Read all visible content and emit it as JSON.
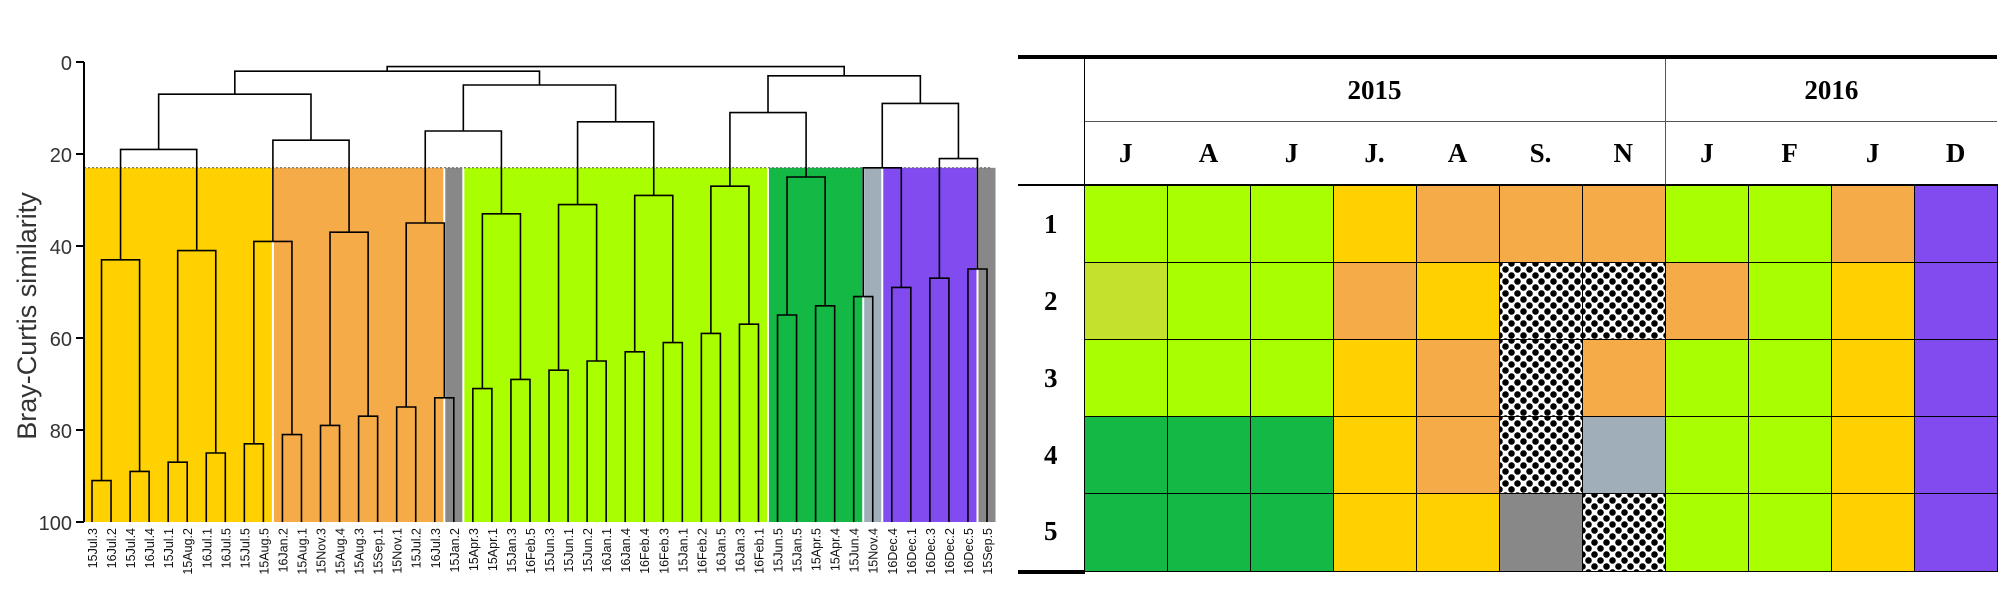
{
  "dendrogram": {
    "ylabel": "Bray-Curtis similarity",
    "yticks": [
      0,
      20,
      40,
      60,
      80,
      100
    ],
    "ylim": [
      0,
      100
    ],
    "cut_level": 23,
    "leaves": [
      "15Jul.3",
      "16Jul.2",
      "15Jul.4",
      "16Jul.4",
      "15Jul.1",
      "15Aug.2",
      "16Jul.1",
      "16Jul.5",
      "15Jul.5",
      "15Aug.5",
      "16Jan.2",
      "15Aug.1",
      "15Nov.3",
      "15Aug.4",
      "15Aug.3",
      "15Sep.1",
      "15Nov.1",
      "15Jul.2",
      "16Jul.3",
      "15Jan.2",
      "15Apr.3",
      "15Apr.1",
      "15Jan.3",
      "16Feb.5",
      "15Jun.3",
      "15Jun.1",
      "15Jun.2",
      "16Jan.1",
      "16Jan.4",
      "16Feb.4",
      "16Feb.3",
      "15Jan.1",
      "16Feb.2",
      "16Jan.5",
      "16Jan.3",
      "16Feb.1",
      "15Jun.5",
      "15Jan.5",
      "15Apr.5",
      "15Apr.4",
      "15Jun.4",
      "15Nov.4",
      "16Dec.4",
      "16Dec.1",
      "16Dec.3",
      "16Dec.2",
      "16Dec.5",
      "15Sep.5"
    ],
    "clusters": [
      {
        "color": "#FFD100",
        "from": 0,
        "to": 9
      },
      {
        "color": "#F5AB48",
        "from": 10,
        "to": 18
      },
      {
        "color": "#888888",
        "from": 19,
        "to": 19
      },
      {
        "color": "#A9FF00",
        "from": 20,
        "to": 35
      },
      {
        "color": "#13B845",
        "from": 36,
        "to": 40
      },
      {
        "color": "#9FAEB9",
        "from": 41,
        "to": 41
      },
      {
        "color": "#814BEF",
        "from": 42,
        "to": 46
      },
      {
        "color": "#888888",
        "from": 47,
        "to": 47
      }
    ],
    "merges": [
      [
        0,
        1,
        91
      ],
      [
        2,
        3,
        89
      ],
      [
        4,
        5,
        87
      ],
      [
        6,
        7,
        85
      ],
      [
        8,
        9,
        83
      ],
      [
        10,
        11,
        81
      ],
      [
        12,
        13,
        79
      ],
      [
        14,
        15,
        77
      ],
      [
        16,
        17,
        75
      ],
      [
        18,
        19,
        73
      ],
      [
        20,
        21,
        71
      ],
      [
        22,
        23,
        69
      ],
      [
        24,
        25,
        67
      ],
      [
        26,
        27,
        65
      ],
      [
        28,
        29,
        63
      ],
      [
        30,
        31,
        61
      ],
      [
        32,
        33,
        59
      ],
      [
        34,
        35,
        57
      ],
      [
        36,
        37,
        55
      ],
      [
        38,
        39,
        53
      ],
      [
        40,
        41,
        51
      ],
      [
        42,
        43,
        49
      ],
      [
        44,
        45,
        47
      ],
      [
        46,
        47,
        45
      ],
      [
        48,
        49,
        43
      ],
      [
        50,
        51,
        41
      ],
      [
        52,
        53,
        39
      ],
      [
        54,
        55,
        37
      ],
      [
        56,
        57,
        35
      ],
      [
        58,
        59,
        33
      ],
      [
        60,
        61,
        31
      ],
      [
        62,
        63,
        29
      ],
      [
        64,
        65,
        27
      ],
      [
        66,
        67,
        25
      ],
      [
        68,
        69,
        23
      ],
      [
        70,
        71,
        21
      ],
      [
        72,
        73,
        19
      ],
      [
        74,
        75,
        17
      ],
      [
        76,
        77,
        15
      ],
      [
        78,
        79,
        13
      ],
      [
        80,
        81,
        11
      ],
      [
        82,
        83,
        9
      ],
      [
        84,
        85,
        7
      ],
      [
        86,
        87,
        5
      ],
      [
        88,
        89,
        3
      ],
      [
        90,
        91,
        2
      ],
      [
        92,
        93,
        1
      ]
    ]
  },
  "grid": {
    "years": [
      {
        "label": "2015",
        "span": 7
      },
      {
        "label": "2016",
        "span": 4
      }
    ],
    "months": [
      "J",
      "A",
      "J",
      "J.",
      "A",
      "S.",
      "N",
      "J",
      "F",
      "J",
      "D"
    ],
    "rows": [
      {
        "label": "1",
        "cells": [
          "lime",
          "lime",
          "lime",
          "yellow",
          "orange",
          "orange",
          "orange",
          "lime",
          "lime",
          "orange",
          "purple"
        ]
      },
      {
        "label": "2",
        "cells": [
          "olive",
          "lime",
          "lime",
          "orange",
          "yellow",
          "hatch",
          "hatch",
          "orange",
          "lime",
          "yellow",
          "purple"
        ]
      },
      {
        "label": "3",
        "cells": [
          "lime",
          "lime",
          "lime",
          "yellow",
          "orange",
          "hatch",
          "orange",
          "lime",
          "lime",
          "yellow",
          "purple"
        ]
      },
      {
        "label": "4",
        "cells": [
          "green",
          "green",
          "green",
          "yellow",
          "orange",
          "hatch",
          "bluegrey",
          "lime",
          "lime",
          "yellow",
          "purple"
        ]
      },
      {
        "label": "5",
        "cells": [
          "green",
          "green",
          "green",
          "yellow",
          "yellow",
          "grey",
          "hatch",
          "lime",
          "lime",
          "yellow",
          "purple"
        ]
      }
    ],
    "colors": {
      "lime": "#A9FF00",
      "olive": "#C4E22B",
      "yellow": "#FFD100",
      "orange": "#F5AB48",
      "green": "#13B845",
      "purple": "#814BEF",
      "bluegrey": "#9FAEB9",
      "grey": "#888888"
    }
  }
}
